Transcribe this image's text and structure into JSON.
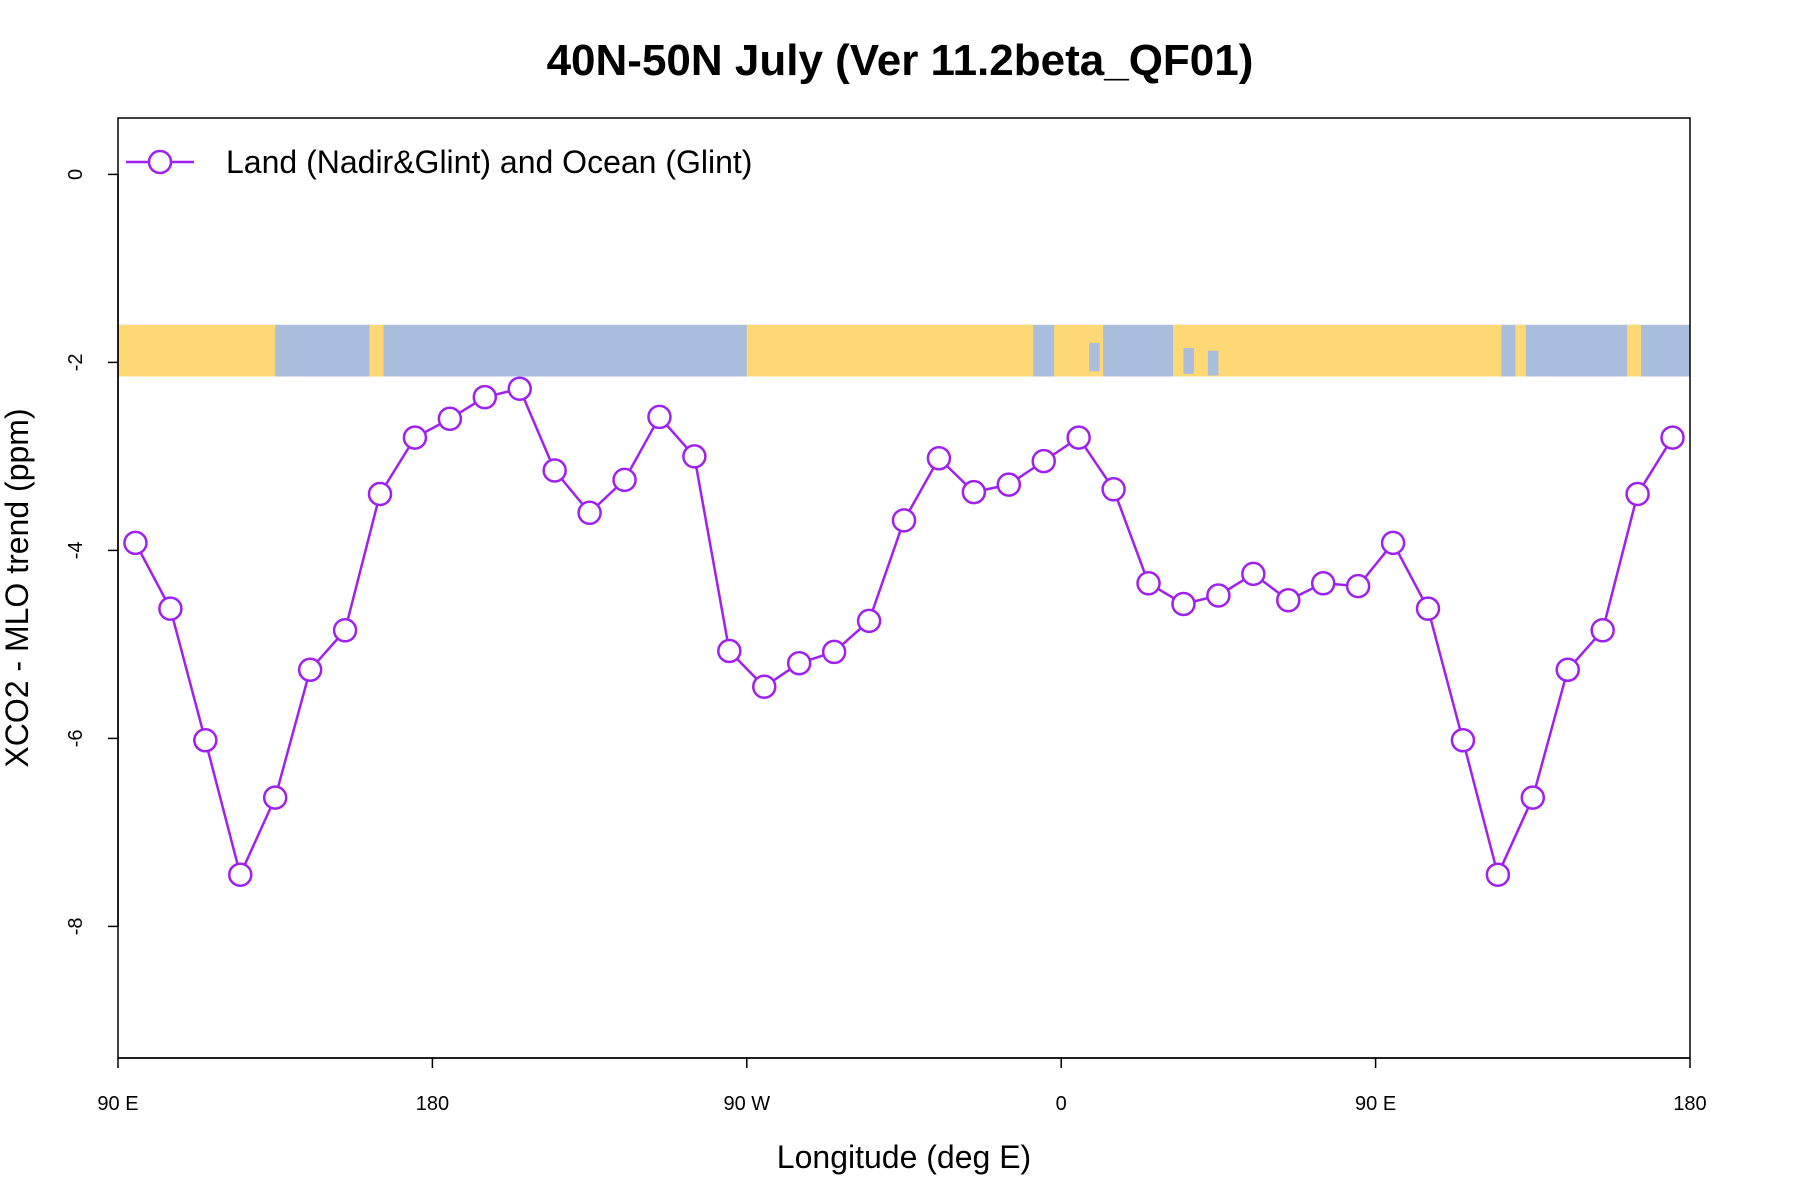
{
  "chart_data": {
    "type": "line",
    "title": "40N-50N July (Ver 11.2beta_QF01)",
    "xlabel": "Longitude (deg E)",
    "ylabel": "XCO2 - MLO trend (ppm)",
    "xlim": [
      90,
      540
    ],
    "ylim": [
      -9.4,
      0.6
    ],
    "x_ticks": [
      {
        "value": 90,
        "label": "90 E"
      },
      {
        "value": 180,
        "label": "180"
      },
      {
        "value": 270,
        "label": "90 W"
      },
      {
        "value": 360,
        "label": "0"
      },
      {
        "value": 450,
        "label": "90 E"
      },
      {
        "value": 540,
        "label": "180"
      }
    ],
    "y_ticks": [
      {
        "value": 0,
        "label": "0"
      },
      {
        "value": -2,
        "label": "-2"
      },
      {
        "value": -4,
        "label": "-4"
      },
      {
        "value": -6,
        "label": "-6"
      },
      {
        "value": -8,
        "label": "-8"
      }
    ],
    "legend": {
      "position": "top-left",
      "label": "Land (Nadir&Glint) and Ocean (Glint)"
    },
    "map_strip": {
      "y_range": [
        -2.15,
        -1.6
      ],
      "land_color": "#FDD874",
      "ocean_color": "#A8BEDC"
    },
    "series": [
      {
        "name": "Land (Nadir&Glint) and Ocean (Glint)",
        "color": "#A020F0",
        "x": [
          95,
          105,
          115,
          125,
          135,
          145,
          155,
          165,
          175,
          185,
          195,
          205,
          215,
          225,
          235,
          245,
          255,
          265,
          275,
          285,
          295,
          305,
          315,
          325,
          335,
          345,
          355,
          365,
          375,
          385,
          395,
          405,
          415,
          425,
          435,
          445,
          455,
          465,
          475,
          485,
          495,
          505,
          515,
          525,
          535
        ],
        "values": [
          -3.92,
          -4.62,
          -6.02,
          -7.45,
          -6.63,
          -5.27,
          -4.85,
          -3.4,
          -2.8,
          -2.6,
          -2.37,
          -2.28,
          -3.15,
          -3.6,
          -3.25,
          -2.58,
          -3.0,
          -5.07,
          -5.45,
          -5.2,
          -5.08,
          -4.75,
          -3.68,
          -3.02,
          -3.38,
          -3.3,
          -3.05,
          -2.8,
          -3.35,
          -4.35,
          -4.57,
          -4.48,
          -4.25,
          -4.53,
          -4.35,
          -4.38,
          -3.92,
          -4.62,
          -6.02,
          -7.45,
          -6.63,
          -5.27,
          -4.85,
          -3.4,
          -2.8
        ]
      }
    ]
  }
}
